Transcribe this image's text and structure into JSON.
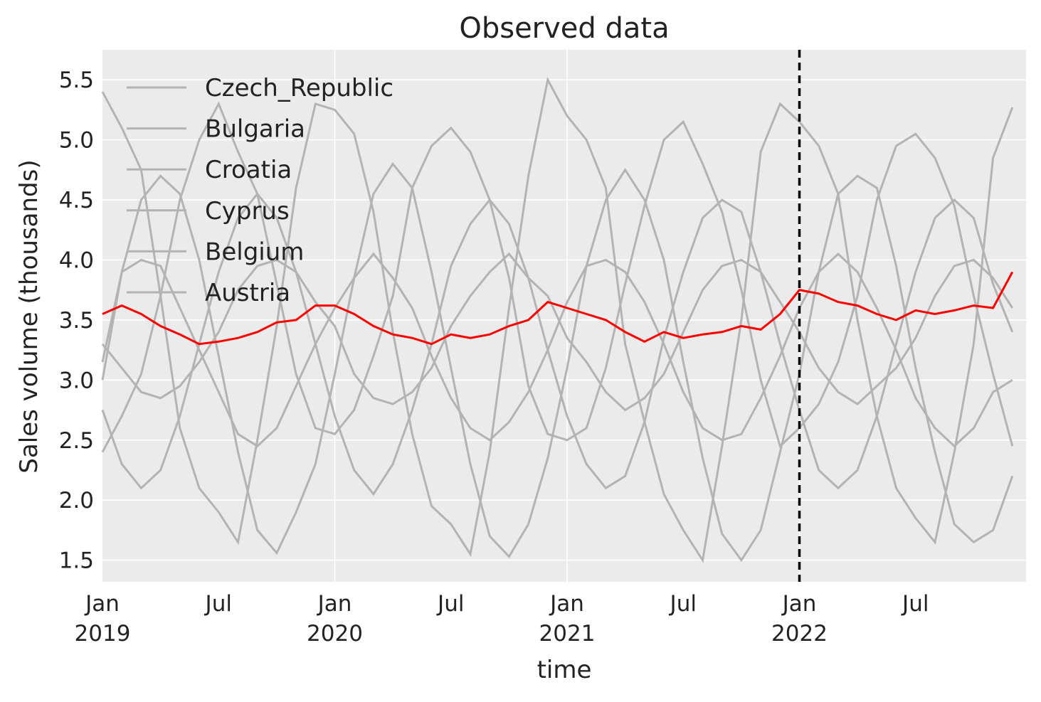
{
  "chart_data": {
    "type": "line",
    "title": "Observed data",
    "xlabel": "time",
    "ylabel": "Sales volume (thousands)",
    "ylim": [
      1.32,
      5.75
    ],
    "xlim": [
      "2019-01",
      "2022-12"
    ],
    "grid": true,
    "legend_placement": "top-left",
    "y_ticks": [
      "1.5",
      "2.0",
      "2.5",
      "3.0",
      "3.5",
      "4.0",
      "4.5",
      "5.0",
      "5.5"
    ],
    "x_ticks": [
      {
        "month": 0,
        "label": "Jan",
        "year": "2019"
      },
      {
        "month": 6,
        "label": "Jul",
        "year": ""
      },
      {
        "month": 12,
        "label": "Jan",
        "year": "2020"
      },
      {
        "month": 18,
        "label": "Jul",
        "year": ""
      },
      {
        "month": 24,
        "label": "Jan",
        "year": "2021"
      },
      {
        "month": 30,
        "label": "Jul",
        "year": ""
      },
      {
        "month": 36,
        "label": "Jan",
        "year": "2022"
      },
      {
        "month": 42,
        "label": "Jul",
        "year": ""
      }
    ],
    "x_start": "2019-01",
    "x_frequency": "monthly",
    "vline": {
      "x": "2022-01",
      "style": "dashed",
      "color": "#000000"
    },
    "series_color": "#b3b3b3",
    "highlight_color": "#ff0000",
    "series": [
      {
        "name": "Czech_Republic",
        "values": [
          5.4,
          5.1,
          4.75,
          3.7,
          2.6,
          2.1,
          1.9,
          1.65,
          2.5,
          3.45,
          4.6,
          5.3,
          5.25,
          5.05,
          4.4,
          3.4,
          2.55,
          1.95,
          1.8,
          1.55,
          2.4,
          3.6,
          4.7,
          5.5,
          5.2,
          5.0,
          4.6,
          3.3,
          2.65,
          2.05,
          1.75,
          1.5,
          2.45,
          3.5,
          4.9,
          5.3,
          5.15,
          4.95,
          4.55,
          3.5,
          2.7,
          2.1,
          1.85,
          1.65,
          2.4,
          3.3,
          4.85,
          5.27
        ]
      },
      {
        "name": "Bulgaria",
        "values": [
          2.4,
          2.7,
          3.05,
          3.7,
          4.5,
          5.0,
          5.3,
          4.9,
          4.55,
          3.8,
          3.05,
          2.6,
          2.55,
          2.75,
          3.2,
          3.7,
          4.6,
          4.95,
          5.1,
          4.9,
          4.5,
          3.85,
          2.95,
          2.55,
          2.5,
          2.6,
          3.1,
          3.8,
          4.45,
          5.0,
          5.15,
          4.8,
          4.4,
          3.75,
          3.0,
          2.45,
          2.6,
          2.8,
          3.15,
          3.7,
          4.5,
          4.95,
          5.05,
          4.85,
          4.45,
          3.7,
          3.05,
          2.45
        ]
      },
      {
        "name": "Croatia",
        "values": [
          3.15,
          3.9,
          4.5,
          4.7,
          4.55,
          4.0,
          3.2,
          2.4,
          1.75,
          1.56,
          1.9,
          2.3,
          3.05,
          3.85,
          4.55,
          4.8,
          4.6,
          3.9,
          3.1,
          2.3,
          1.7,
          1.53,
          1.8,
          2.35,
          3.1,
          3.95,
          4.5,
          4.75,
          4.5,
          4.0,
          3.15,
          2.35,
          1.72,
          1.5,
          1.75,
          2.4,
          3.05,
          3.9,
          4.55,
          4.7,
          4.6,
          3.95,
          3.1,
          2.4,
          1.8,
          1.65,
          1.75,
          2.2
        ]
      },
      {
        "name": "Cyprus",
        "values": [
          3.3,
          3.1,
          2.9,
          2.85,
          2.95,
          3.15,
          3.4,
          3.75,
          3.95,
          4.0,
          3.9,
          3.65,
          3.45,
          3.05,
          2.85,
          2.8,
          2.9,
          3.1,
          3.45,
          3.7,
          3.9,
          4.05,
          3.85,
          3.7,
          3.35,
          3.15,
          2.9,
          2.75,
          2.85,
          3.05,
          3.4,
          3.75,
          3.95,
          4.0,
          3.9,
          3.65,
          3.4,
          3.1,
          2.9,
          2.8,
          2.95,
          3.1,
          3.35,
          3.7,
          3.95,
          4.0,
          3.85,
          3.6
        ]
      },
      {
        "name": "Belgium",
        "values": [
          3.0,
          3.9,
          4.0,
          3.95,
          3.6,
          3.25,
          2.9,
          2.55,
          2.45,
          2.6,
          2.95,
          3.3,
          3.6,
          3.85,
          4.05,
          3.85,
          3.6,
          3.2,
          2.85,
          2.6,
          2.5,
          2.65,
          2.9,
          3.25,
          3.65,
          3.95,
          4.0,
          3.9,
          3.65,
          3.3,
          2.9,
          2.6,
          2.5,
          2.55,
          2.85,
          3.2,
          3.6,
          3.9,
          4.05,
          3.9,
          3.6,
          3.25,
          2.85,
          2.6,
          2.45,
          2.6,
          2.9,
          3.0
        ]
      },
      {
        "name": "Austria",
        "values": [
          2.75,
          2.3,
          2.1,
          2.25,
          2.7,
          3.3,
          3.9,
          4.35,
          4.55,
          4.35,
          3.9,
          3.3,
          2.7,
          2.25,
          2.05,
          2.3,
          2.75,
          3.3,
          3.95,
          4.3,
          4.5,
          4.3,
          3.85,
          3.25,
          2.7,
          2.3,
          2.1,
          2.2,
          2.65,
          3.35,
          3.9,
          4.35,
          4.5,
          4.4,
          3.9,
          3.3,
          2.75,
          2.25,
          2.1,
          2.25,
          2.7,
          3.3,
          3.9,
          4.35,
          4.5,
          4.35,
          3.8,
          3.4
        ]
      }
    ],
    "highlight_series": {
      "values": [
        3.55,
        3.62,
        3.55,
        3.45,
        3.38,
        3.3,
        3.32,
        3.35,
        3.4,
        3.48,
        3.5,
        3.62,
        3.62,
        3.55,
        3.45,
        3.38,
        3.35,
        3.3,
        3.38,
        3.35,
        3.38,
        3.45,
        3.5,
        3.65,
        3.6,
        3.55,
        3.5,
        3.4,
        3.32,
        3.4,
        3.35,
        3.38,
        3.4,
        3.45,
        3.42,
        3.55,
        3.75,
        3.72,
        3.65,
        3.62,
        3.55,
        3.5,
        3.58,
        3.55,
        3.58,
        3.62,
        3.6,
        3.9
      ]
    }
  }
}
